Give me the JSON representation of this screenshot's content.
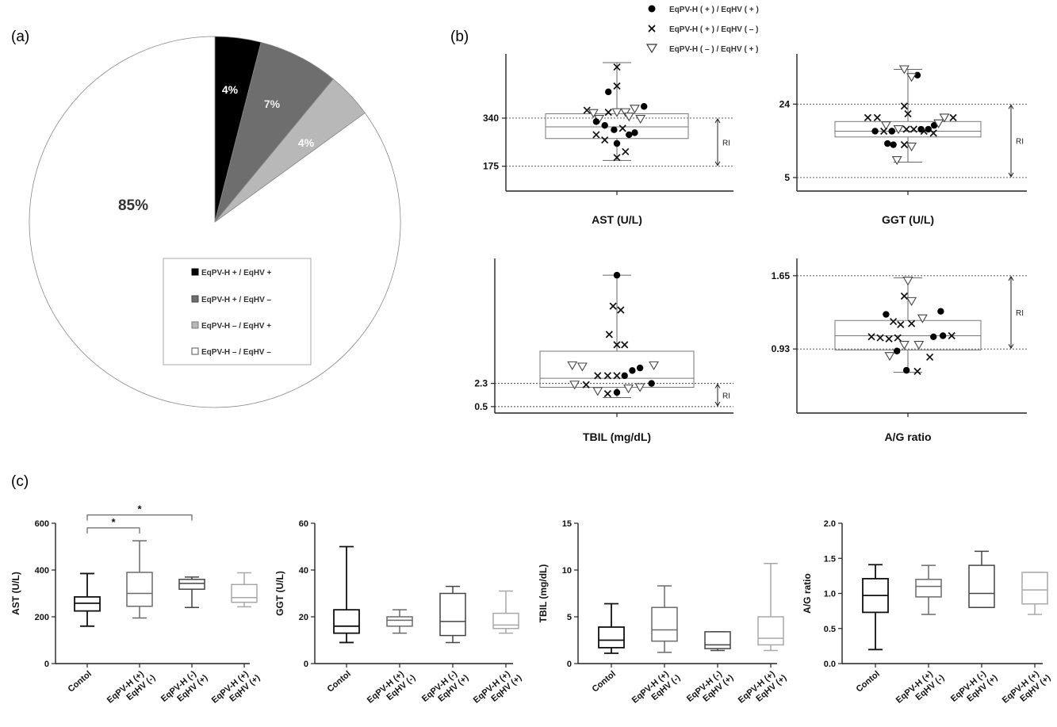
{
  "panels": {
    "a": "(a)",
    "b": "(b)",
    "c": "(c)"
  },
  "colors": {
    "black": "#000000",
    "dark_gray": "#6e6e6e",
    "light_gray": "#b8b8b8",
    "white": "#ffffff",
    "axis": "#222222",
    "box": "#555555",
    "control_box": "#111111",
    "eqpv_hm": "#444444",
    "eqpv_mp": "#666666",
    "eqpv_pp": "#aaaaaa"
  },
  "chart_data": [
    {
      "id": "a",
      "type": "pie",
      "title": "",
      "slices": [
        {
          "label": "EqPV-H + / EqHV +",
          "value": 4,
          "value_label": "4%",
          "color": "#000000"
        },
        {
          "label": "EqPV-H + / EqHV –",
          "value": 7,
          "value_label": "7%",
          "color": "#6e6e6e"
        },
        {
          "label": "EqPV-H – / EqHV +",
          "value": 4,
          "value_label": "4%",
          "color": "#b8b8b8"
        },
        {
          "label": "EqPV-H – / EqHV –",
          "value": 85,
          "value_label": "85%",
          "color": "#ffffff"
        }
      ],
      "legend_position": "bottom-right inside pie"
    },
    {
      "id": "b",
      "type": "scatter",
      "legend": [
        {
          "label": "EqPV-H ( + ) / EqHV ( + )",
          "marker": "dot"
        },
        {
          "label": "EqPV-H ( + ) / EqHV ( – )",
          "marker": "cross"
        },
        {
          "label": "EqPV-H ( – ) / EqHV ( + )",
          "marker": "triangle"
        }
      ],
      "ri_label": "RI",
      "subplots": [
        {
          "id": "ast",
          "xlabel": "AST (U/L)",
          "ri": [
            175,
            340
          ],
          "ri_labels": [
            "175",
            "340"
          ],
          "box": {
            "min": 195,
            "q1": 270,
            "median": 310,
            "q3": 355,
            "max": 530
          },
          "points": [
            {
              "m": "c",
              "x": -0.12,
              "y": 430
            },
            {
              "m": "x",
              "x": 0.0,
              "y": 515
            },
            {
              "m": "x",
              "x": 0.0,
              "y": 450
            },
            {
              "m": "x",
              "x": -0.42,
              "y": 367
            },
            {
              "m": "t",
              "x": -0.33,
              "y": 357
            },
            {
              "m": "t",
              "x": -0.25,
              "y": 337
            },
            {
              "m": "x",
              "x": -0.12,
              "y": 360
            },
            {
              "m": "t",
              "x": 0.0,
              "y": 360
            },
            {
              "m": "t",
              "x": 0.12,
              "y": 360
            },
            {
              "m": "t",
              "x": 0.25,
              "y": 372
            },
            {
              "m": "c",
              "x": 0.38,
              "y": 380
            },
            {
              "m": "t",
              "x": 0.33,
              "y": 337
            },
            {
              "m": "t",
              "x": 0.17,
              "y": 345
            },
            {
              "m": "c",
              "x": -0.29,
              "y": 328
            },
            {
              "m": "c",
              "x": -0.17,
              "y": 315
            },
            {
              "m": "c",
              "x": -0.04,
              "y": 300
            },
            {
              "m": "x",
              "x": 0.08,
              "y": 305
            },
            {
              "m": "x",
              "x": -0.29,
              "y": 283
            },
            {
              "m": "c",
              "x": 0.17,
              "y": 283
            },
            {
              "m": "c",
              "x": 0.25,
              "y": 290
            },
            {
              "m": "x",
              "x": -0.17,
              "y": 265
            },
            {
              "m": "c",
              "x": 0.0,
              "y": 253
            },
            {
              "m": "x",
              "x": 0.12,
              "y": 225
            },
            {
              "m": "x",
              "x": 0.0,
              "y": 205
            }
          ]
        },
        {
          "id": "ggt",
          "xlabel": "GGT (U/L)",
          "ri": [
            5,
            24
          ],
          "ri_labels": [
            "5",
            "24"
          ],
          "box": {
            "min": 9,
            "q1": 15.5,
            "median": 17,
            "q3": 19.5,
            "max": 33
          },
          "points": [
            {
              "m": "t",
              "x": -0.05,
              "y": 33
            },
            {
              "m": "c",
              "x": 0.13,
              "y": 31.5
            },
            {
              "m": "t",
              "x": 0.05,
              "y": 31
            },
            {
              "m": "x",
              "x": -0.05,
              "y": 23.5
            },
            {
              "m": "x",
              "x": 0.0,
              "y": 21.5
            },
            {
              "m": "x",
              "x": -0.55,
              "y": 20.5
            },
            {
              "m": "x",
              "x": -0.42,
              "y": 20.5
            },
            {
              "m": "t",
              "x": 0.5,
              "y": 20.5
            },
            {
              "m": "x",
              "x": 0.62,
              "y": 20.5
            },
            {
              "m": "t",
              "x": -0.3,
              "y": 18.5
            },
            {
              "m": "t",
              "x": -0.13,
              "y": 17.5
            },
            {
              "m": "x",
              "x": -0.02,
              "y": 17.5
            },
            {
              "m": "x",
              "x": 0.08,
              "y": 17.5
            },
            {
              "m": "c",
              "x": 0.18,
              "y": 17.5
            },
            {
              "m": "c",
              "x": 0.28,
              "y": 17.5
            },
            {
              "m": "c",
              "x": 0.36,
              "y": 18.5
            },
            {
              "m": "t",
              "x": 0.42,
              "y": 19
            },
            {
              "m": "c",
              "x": -0.45,
              "y": 17
            },
            {
              "m": "x",
              "x": -0.33,
              "y": 17
            },
            {
              "m": "c",
              "x": -0.22,
              "y": 17
            },
            {
              "m": "c",
              "x": -0.22,
              "y": 17
            },
            {
              "m": "x",
              "x": 0.22,
              "y": 17
            },
            {
              "m": "x",
              "x": 0.35,
              "y": 16.5
            },
            {
              "m": "c",
              "x": -0.2,
              "y": 13.5
            },
            {
              "m": "c",
              "x": -0.28,
              "y": 13.8
            },
            {
              "m": "x",
              "x": -0.05,
              "y": 13.5
            },
            {
              "m": "t",
              "x": 0.05,
              "y": 13
            },
            {
              "m": "t",
              "x": -0.15,
              "y": 9.5
            }
          ]
        },
        {
          "id": "tbil",
          "xlabel": "TBIL (mg/dL)",
          "ri": [
            0.5,
            2.3
          ],
          "ri_labels": [
            "0.5",
            "2.3"
          ],
          "box": {
            "min": 1.2,
            "q1": 2.0,
            "median": 2.7,
            "q3": 4.8,
            "max": 10.7
          },
          "points": [
            {
              "m": "c",
              "x": 0.0,
              "y": 10.7
            },
            {
              "m": "x",
              "x": -0.05,
              "y": 8.3
            },
            {
              "m": "x",
              "x": 0.05,
              "y": 8.0
            },
            {
              "m": "x",
              "x": -0.1,
              "y": 6.1
            },
            {
              "m": "x",
              "x": 0.0,
              "y": 5.3
            },
            {
              "m": "x",
              "x": 0.1,
              "y": 5.3
            },
            {
              "m": "t",
              "x": -0.58,
              "y": 3.7
            },
            {
              "m": "t",
              "x": -0.45,
              "y": 3.6
            },
            {
              "m": "c",
              "x": 0.3,
              "y": 3.5
            },
            {
              "m": "t",
              "x": 0.48,
              "y": 3.7
            },
            {
              "m": "c",
              "x": 0.2,
              "y": 3.3
            },
            {
              "m": "x",
              "x": -0.25,
              "y": 2.9
            },
            {
              "m": "x",
              "x": -0.12,
              "y": 2.9
            },
            {
              "m": "x",
              "x": 0.0,
              "y": 2.9
            },
            {
              "m": "c",
              "x": 0.1,
              "y": 2.9
            },
            {
              "m": "t",
              "x": -0.55,
              "y": 2.2
            },
            {
              "m": "x",
              "x": -0.4,
              "y": 2.2
            },
            {
              "m": "c",
              "x": 0.45,
              "y": 2.3
            },
            {
              "m": "t",
              "x": -0.25,
              "y": 1.7
            },
            {
              "m": "x",
              "x": -0.12,
              "y": 1.5
            },
            {
              "m": "c",
              "x": 0.0,
              "y": 1.6
            },
            {
              "m": "t",
              "x": 0.15,
              "y": 1.9
            },
            {
              "m": "t",
              "x": 0.3,
              "y": 2.0
            }
          ]
        },
        {
          "id": "ag",
          "xlabel": "A/G ratio",
          "ri": [
            0.93,
            1.65
          ],
          "ri_labels": [
            "0.93",
            "1.65"
          ],
          "box": {
            "min": 0.7,
            "q1": 0.92,
            "median": 1.06,
            "q3": 1.21,
            "max": 1.63
          },
          "points": [
            {
              "m": "t",
              "x": 0.0,
              "y": 1.6
            },
            {
              "m": "x",
              "x": -0.05,
              "y": 1.45
            },
            {
              "m": "t",
              "x": 0.05,
              "y": 1.4
            },
            {
              "m": "c",
              "x": -0.3,
              "y": 1.27
            },
            {
              "m": "c",
              "x": 0.45,
              "y": 1.3
            },
            {
              "m": "x",
              "x": -0.2,
              "y": 1.2
            },
            {
              "m": "x",
              "x": -0.1,
              "y": 1.17
            },
            {
              "m": "x",
              "x": 0.05,
              "y": 1.18
            },
            {
              "m": "t",
              "x": 0.2,
              "y": 1.23
            },
            {
              "m": "x",
              "x": -0.5,
              "y": 1.05
            },
            {
              "m": "x",
              "x": -0.38,
              "y": 1.04
            },
            {
              "m": "x",
              "x": -0.26,
              "y": 1.03
            },
            {
              "m": "x",
              "x": -0.14,
              "y": 1.04
            },
            {
              "m": "c",
              "x": 0.35,
              "y": 1.05
            },
            {
              "m": "c",
              "x": 0.48,
              "y": 1.06
            },
            {
              "m": "x",
              "x": 0.6,
              "y": 1.06
            },
            {
              "m": "t",
              "x": -0.05,
              "y": 0.97
            },
            {
              "m": "c",
              "x": -0.15,
              "y": 0.91
            },
            {
              "m": "t",
              "x": 0.15,
              "y": 0.97
            },
            {
              "m": "t",
              "x": -0.25,
              "y": 0.86
            },
            {
              "m": "x",
              "x": 0.3,
              "y": 0.85
            },
            {
              "m": "c",
              "x": -0.02,
              "y": 0.72
            },
            {
              "m": "x",
              "x": 0.13,
              "y": 0.71
            }
          ]
        }
      ]
    },
    {
      "id": "c",
      "type": "box",
      "categories": [
        "Contol",
        "EqPV-H (+)\nEqHV (-)",
        "EqPV-H (-)\nEqHV (+)",
        "EqPV-H (+)\nEqHV (+)"
      ],
      "category_lines": [
        [
          "Contol"
        ],
        [
          "EqPV-H (+)",
          "EqHV (-)"
        ],
        [
          "EqPV-H (-)",
          "EqHV (+)"
        ],
        [
          "EqPV-H (+)",
          "EqHV (+)"
        ]
      ],
      "subplots": [
        {
          "id": "ast",
          "ylabel": "AST (U/L)",
          "ylim": [
            0,
            600
          ],
          "yticks": [
            "0",
            "200",
            "400",
            "600"
          ],
          "ytick_values": [
            0,
            200,
            400,
            600
          ],
          "boxes": [
            {
              "min": 160,
              "q1": 225,
              "median": 258,
              "q3": 285,
              "max": 385
            },
            {
              "min": 195,
              "q1": 245,
              "median": 300,
              "q3": 390,
              "max": 525
            },
            {
              "min": 240,
              "q1": 318,
              "median": 343,
              "q3": 360,
              "max": 370
            },
            {
              "min": 243,
              "q1": 262,
              "median": 282,
              "q3": 338,
              "max": 388
            }
          ],
          "significance": [
            {
              "from": 0,
              "to": 1,
              "y": 580,
              "label": "*"
            },
            {
              "from": 0,
              "to": 2,
              "y": 635,
              "label": "*"
            }
          ]
        },
        {
          "id": "ggt",
          "ylabel": "GGT (U/L)",
          "ylim": [
            0,
            60
          ],
          "yticks": [
            "0",
            "20",
            "40",
            "60"
          ],
          "ytick_values": [
            0,
            20,
            40,
            60
          ],
          "boxes": [
            {
              "min": 9,
              "q1": 13,
              "median": 16,
              "q3": 23,
              "max": 50
            },
            {
              "min": 13,
              "q1": 16,
              "median": 18.5,
              "q3": 20,
              "max": 23
            },
            {
              "min": 9,
              "q1": 12,
              "median": 18,
              "q3": 30,
              "max": 33
            },
            {
              "min": 13,
              "q1": 15,
              "median": 16.5,
              "q3": 21.5,
              "max": 31
            }
          ]
        },
        {
          "id": "tbil",
          "ylabel": "TBIL (mg/dL)",
          "ylim": [
            0,
            15
          ],
          "yticks": [
            "0",
            "5",
            "10",
            "15"
          ],
          "ytick_values": [
            0,
            5,
            10,
            15
          ],
          "boxes": [
            {
              "min": 1.1,
              "q1": 1.7,
              "median": 2.5,
              "q3": 3.9,
              "max": 6.4
            },
            {
              "min": 1.2,
              "q1": 2.4,
              "median": 3.6,
              "q3": 6.0,
              "max": 8.3
            },
            {
              "min": 1.4,
              "q1": 1.6,
              "median": 2.0,
              "q3": 3.4,
              "max": 3.4
            },
            {
              "min": 1.4,
              "q1": 2.0,
              "median": 2.7,
              "q3": 5.0,
              "max": 10.7
            }
          ]
        },
        {
          "id": "ag",
          "ylabel": "A/G ratio",
          "ylim": [
            0,
            2.0
          ],
          "yticks": [
            "0.0",
            "0.5",
            "1.0",
            "1.5",
            "2.0"
          ],
          "ytick_values": [
            0,
            0.5,
            1.0,
            1.5,
            2.0
          ],
          "boxes": [
            {
              "min": 0.2,
              "q1": 0.73,
              "median": 0.97,
              "q3": 1.21,
              "max": 1.41
            },
            {
              "min": 0.7,
              "q1": 0.95,
              "median": 1.1,
              "q3": 1.2,
              "max": 1.4
            },
            {
              "min": 0.8,
              "q1": 0.8,
              "median": 1.0,
              "q3": 1.4,
              "max": 1.6
            },
            {
              "min": 0.7,
              "q1": 0.85,
              "median": 1.05,
              "q3": 1.3,
              "max": 1.3
            }
          ]
        }
      ]
    }
  ]
}
